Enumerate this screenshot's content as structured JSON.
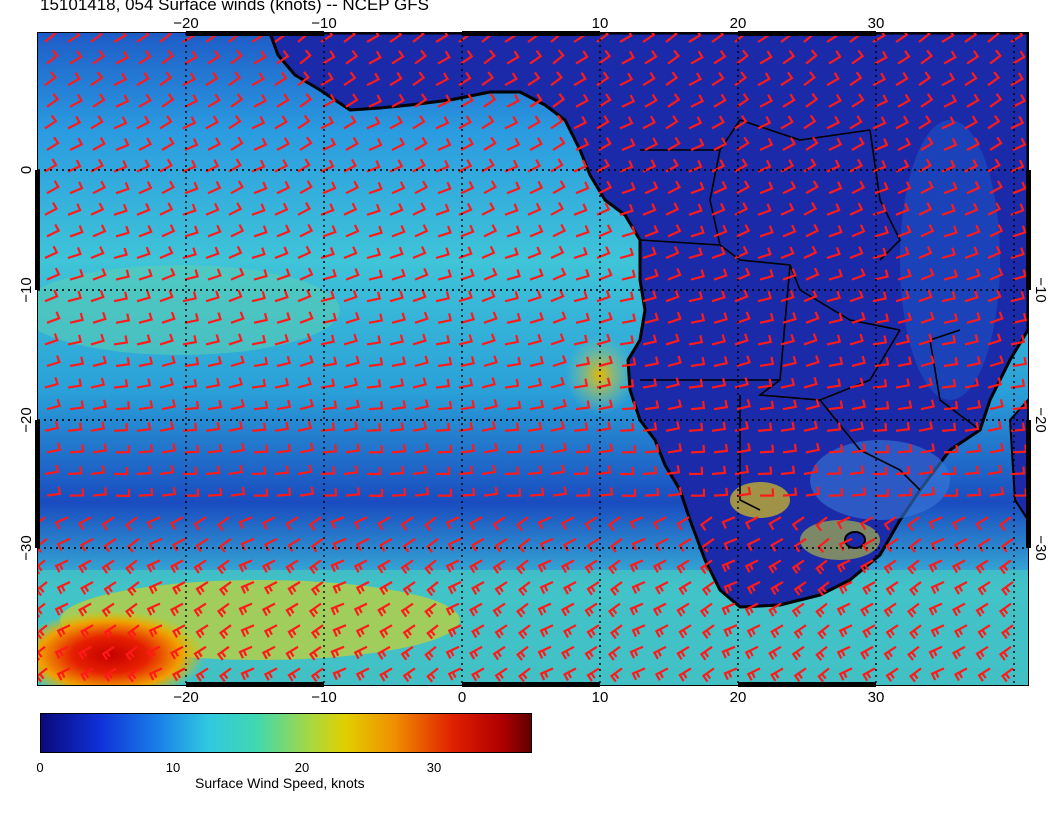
{
  "title": "15101418, 054 Surface winds (knots) -- NCEP GFS",
  "map": {
    "lon_ticks": [
      "−20",
      "−10",
      "0",
      "10",
      "20",
      "30"
    ],
    "lat_ticks": [
      "0",
      "−10",
      "−20",
      "−30"
    ],
    "colors": {
      "land": "#1a2a9c",
      "ocean": "#2f8fd0",
      "coast": "#000000",
      "barb": "#ff1a1a",
      "grid": "#000000"
    }
  },
  "colorbar": {
    "label": "Surface Wind Speed, knots",
    "tick_labels": [
      "0",
      "10",
      "20",
      "30"
    ],
    "ticks": [
      0,
      10,
      20,
      30
    ],
    "range": [
      0,
      37
    ]
  }
}
